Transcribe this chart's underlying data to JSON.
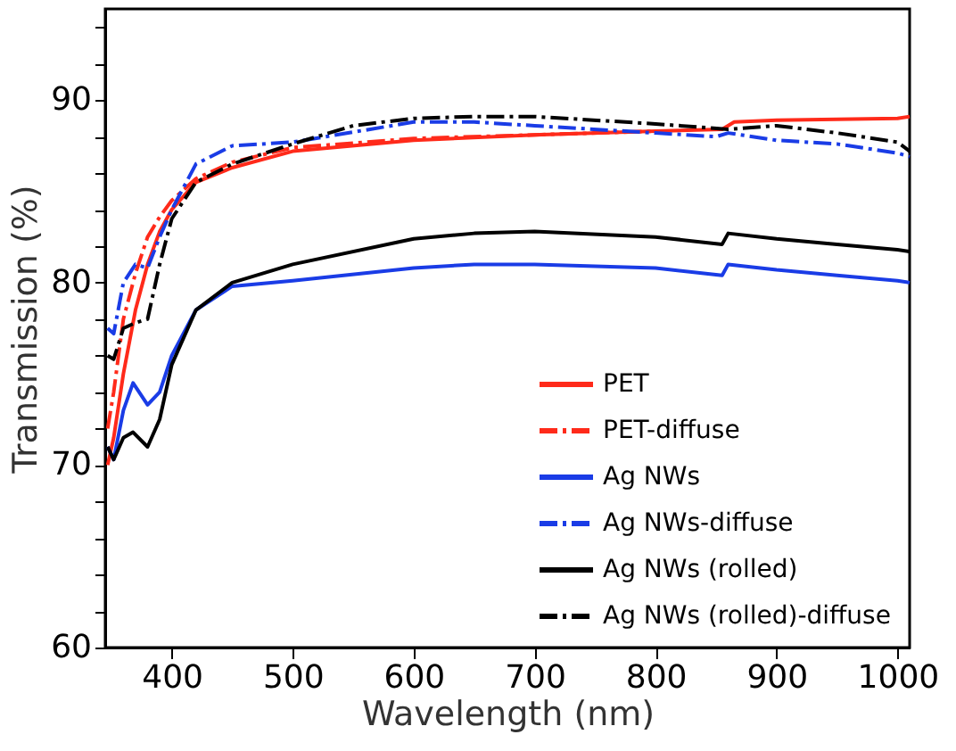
{
  "chart_data": {
    "type": "line",
    "xlabel": "Wavelength (nm)",
    "ylabel": "Transmission (%)",
    "xlim": [
      345,
      1010
    ],
    "ylim": [
      60,
      95
    ],
    "xticks": [
      400,
      500,
      600,
      700,
      800,
      900,
      1000
    ],
    "yticks": [
      60,
      {
        "value": 62,
        "label": null
      },
      {
        "value": 64,
        "label": null
      },
      {
        "value": 66,
        "label": null
      },
      {
        "value": 68,
        "label": null
      },
      70,
      {
        "value": 72,
        "label": null
      },
      {
        "value": 74,
        "label": null
      },
      {
        "value": 76,
        "label": null
      },
      {
        "value": 78,
        "label": null
      },
      80,
      {
        "value": 82,
        "label": null
      },
      {
        "value": 84,
        "label": null
      },
      {
        "value": 86,
        "label": null
      },
      {
        "value": 88,
        "label": null
      },
      90,
      {
        "value": 92,
        "label": null
      },
      {
        "value": 94,
        "label": null
      }
    ],
    "grid": false,
    "legend": "bottom right",
    "marker": "none",
    "series": [
      {
        "name": "PET",
        "color": "#ff2a1a",
        "line_style": "solid",
        "x": [
          347,
          352,
          360,
          370,
          380,
          390,
          400,
          420,
          450,
          500,
          600,
          700,
          800,
          855,
          865,
          900,
          1000,
          1010
        ],
        "values": [
          70,
          71.5,
          75,
          78.5,
          81,
          82.8,
          84,
          85.5,
          86.3,
          87.2,
          87.8,
          88.1,
          88.3,
          88.4,
          88.8,
          88.9,
          89,
          89.1
        ]
      },
      {
        "name": "PET-diffuse",
        "color": "#ff2a1a",
        "line_style": "dashed",
        "x": [
          347,
          352,
          360,
          370,
          380,
          390,
          400,
          420,
          450,
          500,
          600,
          700,
          800
        ],
        "values": [
          72,
          74,
          78,
          80.5,
          82.5,
          83.6,
          84.5,
          85.7,
          86.6,
          87.4,
          87.9,
          88.1,
          88.3
        ]
      },
      {
        "name": "Ag NWs",
        "color": "#1a3ce6",
        "line_style": "solid",
        "x": [
          347,
          352,
          360,
          368,
          380,
          390,
          400,
          420,
          450,
          500,
          600,
          650,
          700,
          800,
          855,
          860,
          900,
          950,
          1000,
          1010
        ],
        "values": [
          71,
          70.3,
          73,
          74.5,
          73.3,
          74,
          76,
          78.5,
          79.8,
          80.1,
          80.8,
          81,
          81,
          80.8,
          80.4,
          81,
          80.7,
          80.4,
          80.1,
          80
        ]
      },
      {
        "name": "Ag NWs-diffuse",
        "color": "#1a3ce6",
        "line_style": "dashed",
        "x": [
          347,
          352,
          360,
          370,
          380,
          390,
          400,
          420,
          450,
          500,
          600,
          650,
          700,
          800,
          850,
          860,
          900,
          950,
          1000,
          1010
        ],
        "values": [
          77.5,
          77.2,
          80,
          81,
          80.8,
          82.5,
          84,
          86.5,
          87.5,
          87.7,
          88.8,
          88.8,
          88.6,
          88.2,
          88,
          88.2,
          87.8,
          87.6,
          87.1,
          86.9
        ]
      },
      {
        "name": "Ag NWs (rolled)",
        "color": "#000000",
        "line_style": "solid",
        "x": [
          347,
          352,
          360,
          368,
          380,
          390,
          400,
          420,
          450,
          500,
          600,
          650,
          700,
          800,
          855,
          860,
          900,
          950,
          1000,
          1010
        ],
        "values": [
          71,
          70.3,
          71.5,
          71.8,
          71,
          72.5,
          75.5,
          78.5,
          80,
          81,
          82.4,
          82.7,
          82.8,
          82.5,
          82.1,
          82.7,
          82.4,
          82.1,
          81.8,
          81.7
        ]
      },
      {
        "name": "Ag NWs (rolled)-diffuse",
        "color": "#000000",
        "line_style": "dashed",
        "x": [
          347,
          352,
          360,
          370,
          380,
          390,
          400,
          420,
          450,
          500,
          550,
          600,
          650,
          700,
          800,
          860,
          900,
          950,
          1000,
          1010
        ],
        "values": [
          76,
          75.8,
          77.5,
          77.8,
          78,
          81,
          83.5,
          85.5,
          86.5,
          87.6,
          88.6,
          89,
          89.1,
          89.1,
          88.7,
          88.4,
          88.6,
          88.2,
          87.7,
          87.2
        ]
      }
    ]
  }
}
